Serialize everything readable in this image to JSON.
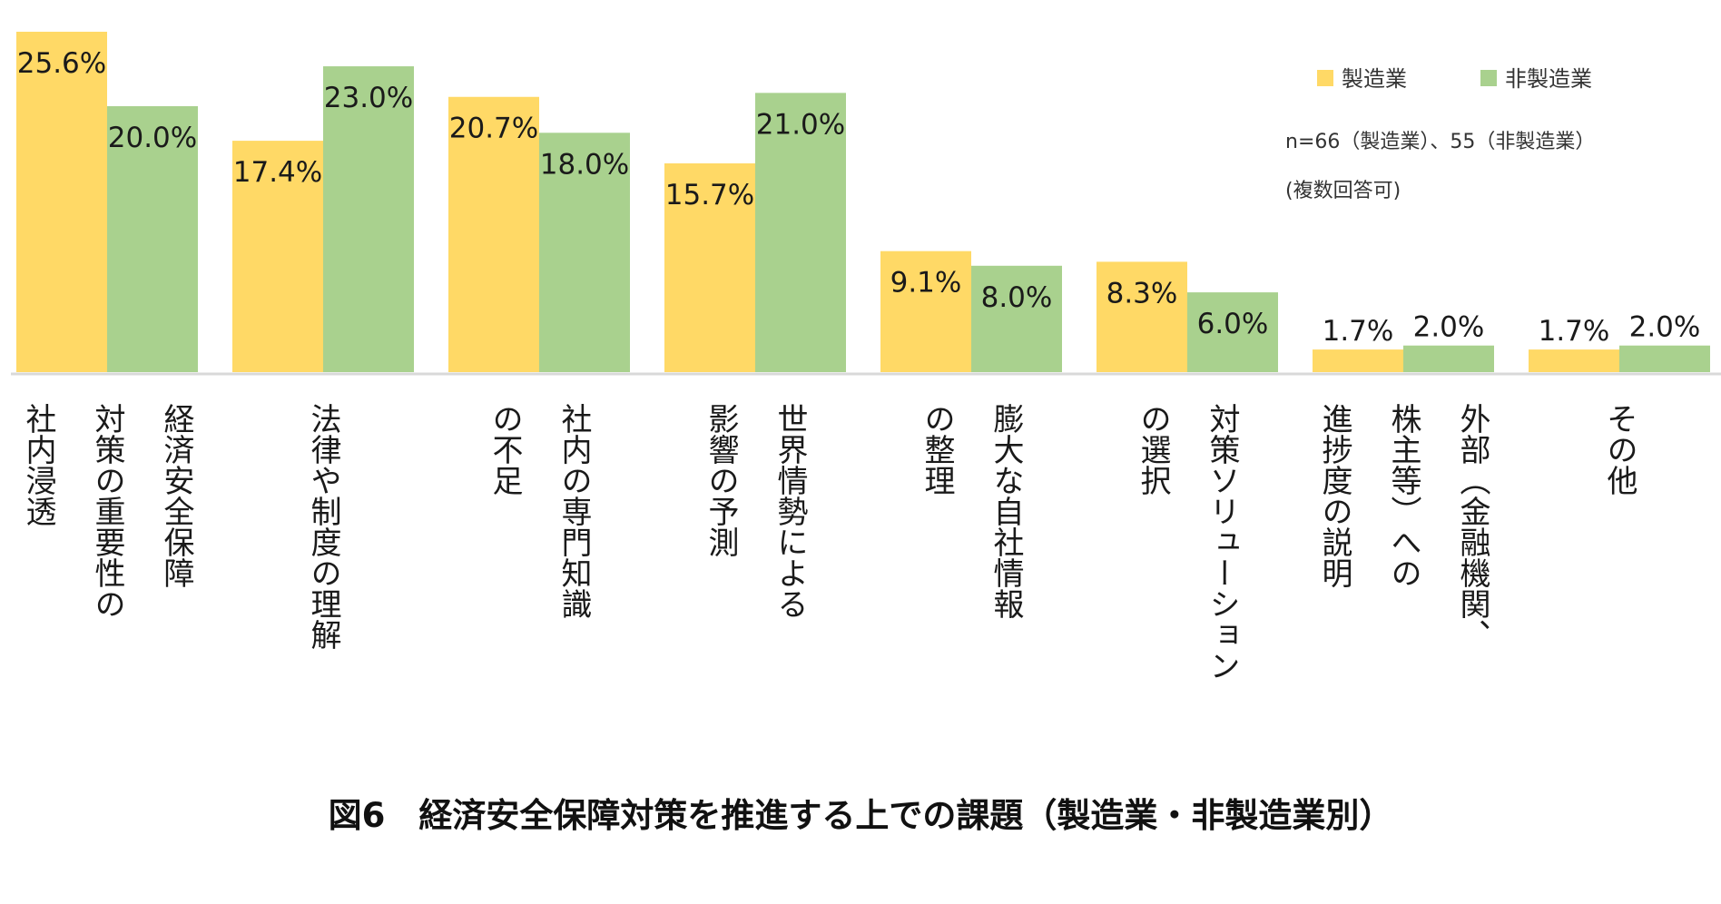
{
  "caption": "図6　経済安全保障対策を推進する上での課題（製造業・非製造業別）",
  "note_line1": "n=66（製造業）、55（非製造業）",
  "note_line2": "(複数回答可)",
  "chart_data": {
    "type": "bar",
    "categories": [
      [
        "社内浸透",
        "対策の重要性の",
        "経済安全保障"
      ],
      [
        "法律や制度の理解"
      ],
      [
        "の不足",
        "社内の専門知識"
      ],
      [
        "影響の予測",
        "世界情勢による"
      ],
      [
        "の整理",
        "膨大な自社情報"
      ],
      [
        "の選択",
        "対策ソリューション"
      ],
      [
        "進捗度の説明",
        "株主等）への",
        "外部（金融機関、"
      ],
      [
        "その他"
      ]
    ],
    "series": [
      {
        "name": "製造業",
        "color": "#FFD966",
        "values": [
          25.6,
          17.4,
          20.7,
          15.7,
          9.1,
          8.3,
          1.7,
          1.7
        ],
        "labels": [
          "25.6%",
          "17.4%",
          "20.7%",
          "15.7%",
          "9.1%",
          "8.3%",
          "1.7%",
          "1.7%"
        ]
      },
      {
        "name": "非製造業",
        "color": "#A9D18E",
        "values": [
          20.0,
          23.0,
          18.0,
          21.0,
          8.0,
          6.0,
          2.0,
          2.0
        ],
        "labels": [
          "20.0%",
          "23.0%",
          "18.0%",
          "21.0%",
          "8.0%",
          "6.0%",
          "2.0%",
          "2.0%"
        ]
      }
    ],
    "ylim": [
      0,
      26
    ],
    "grid": false,
    "legend_position": "top-right"
  }
}
